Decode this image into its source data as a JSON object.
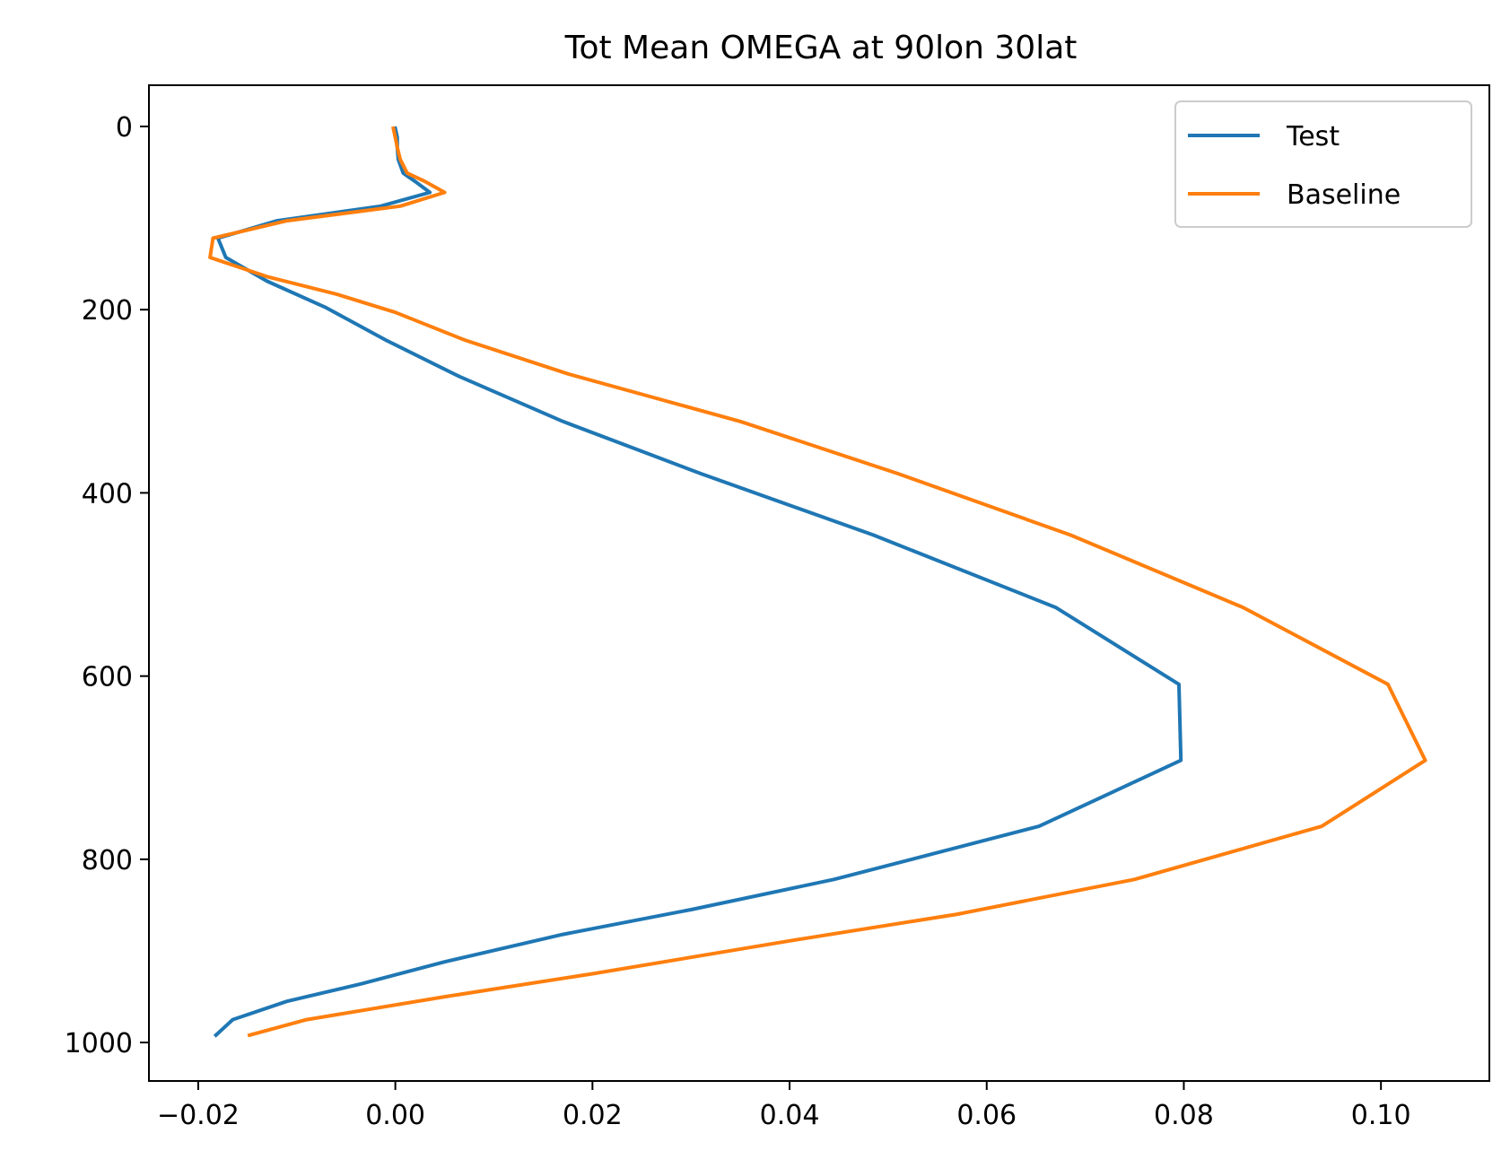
{
  "chart_data": {
    "type": "line",
    "title": "Tot Mean OMEGA at 90lon 30lat",
    "xlabel": "",
    "ylabel": "",
    "xlim": [
      -0.025,
      0.111
    ],
    "ylim": [
      1042,
      -45
    ],
    "y_inverted": true,
    "grid": false,
    "legend_position": "top-right",
    "x_ticks": [
      -0.02,
      0.0,
      0.02,
      0.04,
      0.06,
      0.08,
      0.1
    ],
    "x_tick_labels": [
      "−0.02",
      "0.00",
      "0.02",
      "0.04",
      "0.06",
      "0.08",
      "0.10"
    ],
    "y_ticks": [
      0,
      200,
      400,
      600,
      800,
      1000
    ],
    "y_tick_labels": [
      "0",
      "200",
      "400",
      "600",
      "800",
      "1000"
    ],
    "series": [
      {
        "name": "Test",
        "color": "#1f77b4",
        "points": [
          [
            0.0,
            2
          ],
          [
            0.0002,
            12
          ],
          [
            0.0002,
            23
          ],
          [
            0.0003,
            36
          ],
          [
            0.0008,
            51
          ],
          [
            0.002,
            60
          ],
          [
            0.0035,
            72
          ],
          [
            -0.0015,
            87
          ],
          [
            -0.012,
            103
          ],
          [
            -0.018,
            122
          ],
          [
            -0.0172,
            143
          ],
          [
            -0.013,
            169
          ],
          [
            -0.007,
            198
          ],
          [
            -0.001,
            233
          ],
          [
            0.0065,
            273
          ],
          [
            0.017,
            322
          ],
          [
            0.031,
            379
          ],
          [
            0.0485,
            446
          ],
          [
            0.067,
            525
          ],
          [
            0.0795,
            609
          ],
          [
            0.0797,
            692
          ],
          [
            0.0653,
            764
          ],
          [
            0.0445,
            822
          ],
          [
            0.03,
            855
          ],
          [
            0.017,
            882
          ],
          [
            0.005,
            912
          ],
          [
            -0.0035,
            936
          ],
          [
            -0.011,
            955
          ],
          [
            -0.0165,
            975
          ],
          [
            -0.0182,
            992
          ]
        ]
      },
      {
        "name": "Baseline",
        "color": "#ff7f0e",
        "points": [
          [
            -0.0002,
            2
          ],
          [
            0.0,
            12
          ],
          [
            0.0002,
            23
          ],
          [
            0.0005,
            36
          ],
          [
            0.0012,
            51
          ],
          [
            0.003,
            60
          ],
          [
            0.005,
            72
          ],
          [
            0.0005,
            87
          ],
          [
            -0.011,
            103
          ],
          [
            -0.0185,
            122
          ],
          [
            -0.0188,
            143
          ],
          [
            -0.013,
            164
          ],
          [
            -0.006,
            183
          ],
          [
            0.0,
            203
          ],
          [
            0.007,
            233
          ],
          [
            0.0175,
            270
          ],
          [
            0.035,
            322
          ],
          [
            0.051,
            379
          ],
          [
            0.0685,
            446
          ],
          [
            0.086,
            525
          ],
          [
            0.1007,
            609
          ],
          [
            0.1045,
            692
          ],
          [
            0.094,
            764
          ],
          [
            0.075,
            822
          ],
          [
            0.057,
            860
          ],
          [
            0.04,
            889
          ],
          [
            0.02,
            925
          ],
          [
            0.005,
            950
          ],
          [
            -0.009,
            975
          ],
          [
            -0.0148,
            992
          ]
        ]
      }
    ]
  }
}
